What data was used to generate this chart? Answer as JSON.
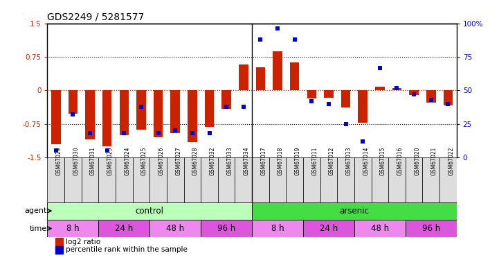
{
  "title": "GDS2249 / 5281577",
  "samples": [
    "GSM67029",
    "GSM67030",
    "GSM67031",
    "GSM67023",
    "GSM67024",
    "GSM67025",
    "GSM67026",
    "GSM67027",
    "GSM67028",
    "GSM67032",
    "GSM67033",
    "GSM67034",
    "GSM67017",
    "GSM67018",
    "GSM67019",
    "GSM67011",
    "GSM67012",
    "GSM67013",
    "GSM67014",
    "GSM67015",
    "GSM67016",
    "GSM67020",
    "GSM67021",
    "GSM67022"
  ],
  "log2_ratio": [
    -1.2,
    -0.52,
    -1.1,
    -1.25,
    -1.0,
    -0.88,
    -1.05,
    -0.95,
    -1.15,
    -0.82,
    -0.42,
    0.58,
    0.52,
    0.88,
    0.63,
    -0.18,
    -0.16,
    -0.38,
    -0.72,
    0.08,
    0.06,
    -0.1,
    -0.28,
    -0.33
  ],
  "percentile": [
    5,
    32,
    18,
    5,
    18,
    38,
    18,
    20,
    18,
    18,
    38,
    38,
    88,
    96,
    88,
    42,
    40,
    25,
    12,
    67,
    52,
    47,
    43,
    40
  ],
  "ylim_left": [
    -1.5,
    1.5
  ],
  "ylim_right": [
    0,
    100
  ],
  "bar_color": "#cc2200",
  "dot_color": "#0000cc",
  "agent_groups": [
    {
      "label": "control",
      "start": 0,
      "end": 12,
      "color": "#bbffbb"
    },
    {
      "label": "arsenic",
      "start": 12,
      "end": 24,
      "color": "#44dd44"
    }
  ],
  "time_groups": [
    {
      "label": "8 h",
      "start": 0,
      "end": 3,
      "color": "#ee88ee"
    },
    {
      "label": "24 h",
      "start": 3,
      "end": 6,
      "color": "#dd55dd"
    },
    {
      "label": "48 h",
      "start": 6,
      "end": 9,
      "color": "#ee88ee"
    },
    {
      "label": "96 h",
      "start": 9,
      "end": 12,
      "color": "#dd55dd"
    },
    {
      "label": "8 h",
      "start": 12,
      "end": 15,
      "color": "#ee88ee"
    },
    {
      "label": "24 h",
      "start": 15,
      "end": 18,
      "color": "#dd55dd"
    },
    {
      "label": "48 h",
      "start": 18,
      "end": 21,
      "color": "#ee88ee"
    },
    {
      "label": "96 h",
      "start": 21,
      "end": 24,
      "color": "#dd55dd"
    }
  ],
  "legend_items": [
    {
      "label": "log2 ratio",
      "color": "#cc2200"
    },
    {
      "label": "percentile rank within the sample",
      "color": "#0000cc"
    }
  ],
  "sample_box_color": "#dddddd",
  "n_control": 12
}
